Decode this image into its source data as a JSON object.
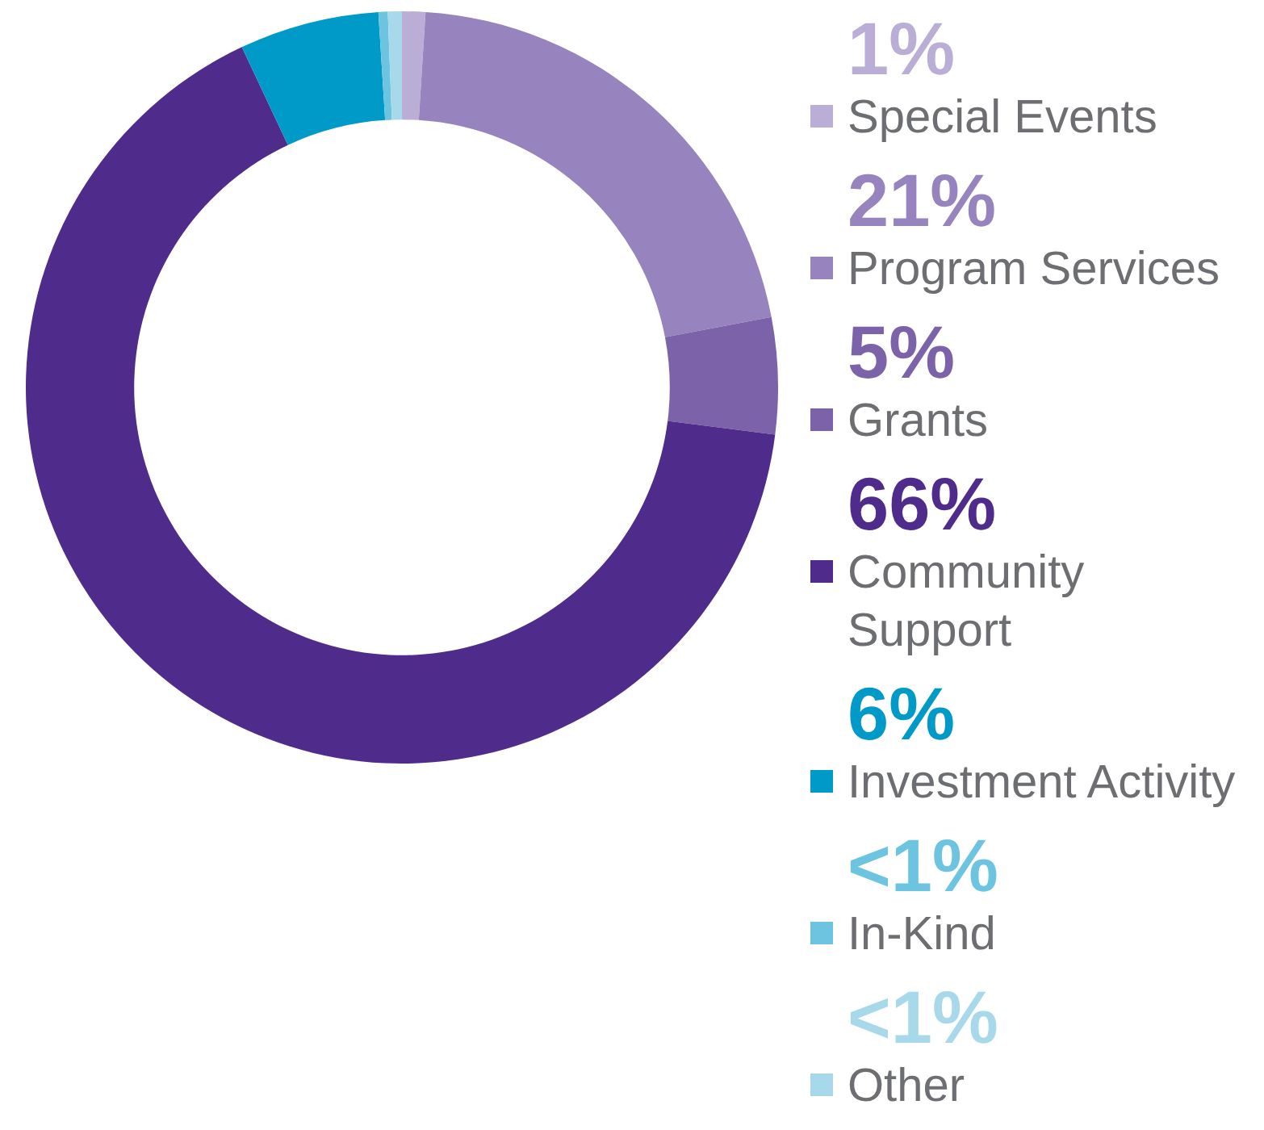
{
  "chart_data": {
    "type": "donut",
    "categories": [
      "Special Events",
      "Program Services",
      "Grants",
      "Community Support",
      "Investment Activity",
      "In-Kind",
      "Other"
    ],
    "values": [
      1,
      21,
      5,
      66,
      6,
      0.4,
      0.6
    ],
    "value_labels": [
      "1%",
      "21%",
      "5%",
      "66%",
      "6%",
      "<1%",
      "<1%"
    ],
    "colors": [
      "#bbaed6",
      "#9784be",
      "#7c62a9",
      "#4f2b8c",
      "#009ac8",
      "#6cc4e0",
      "#a8d9ea"
    ],
    "legend": "right"
  }
}
